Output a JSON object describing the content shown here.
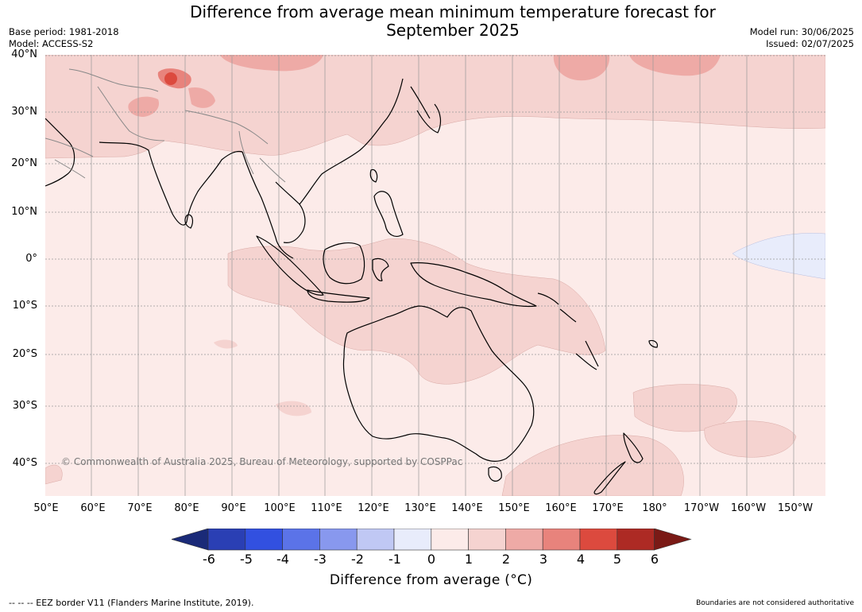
{
  "header": {
    "title": "Difference from average mean minimum temperature forecast for\nSeptember 2025",
    "base_period": "Base period: 1981-2018",
    "model": "Model: ACCESS-S2",
    "model_run": "Model run: 30/06/2025",
    "issued": "Issued: 02/07/2025"
  },
  "map": {
    "lat_labels": [
      "40°N",
      "30°N",
      "20°N",
      "10°N",
      "0°",
      "10°S",
      "20°S",
      "30°S",
      "40°S"
    ],
    "lon_labels": [
      "50°E",
      "60°E",
      "70°E",
      "80°E",
      "90°E",
      "100°E",
      "110°E",
      "120°E",
      "130°E",
      "140°E",
      "150°E",
      "160°E",
      "170°E",
      "180°",
      "170°W",
      "160°W",
      "150°W"
    ],
    "copyright": "© Commonwealth of Australia 2025, Bureau of Meteorology, supported by COSPPac",
    "background_color": "#fcebe9"
  },
  "colorbar": {
    "ticks": [
      "-6",
      "-5",
      "-4",
      "-3",
      "-2",
      "-1",
      "0",
      "1",
      "2",
      "3",
      "4",
      "5",
      "6"
    ],
    "colors": [
      "#1a2a78",
      "#2a3fb4",
      "#3250e0",
      "#5b73e8",
      "#8898ee",
      "#c0c8f4",
      "#e8ecfb",
      "#fcebe9",
      "#f5d3d0",
      "#eeaaa6",
      "#e8837c",
      "#dc4a3e",
      "#ad2a24",
      "#7a1a16"
    ],
    "label": "Difference from average (°C)"
  },
  "footer": {
    "eez": "--  --  -- EEZ border V11 (Flanders Marine Institute, 2019).",
    "boundaries": "Boundaries are not considered authoritative"
  }
}
